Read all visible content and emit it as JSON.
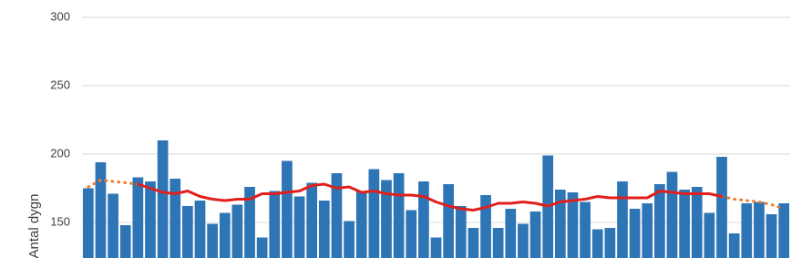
{
  "chart_data": {
    "type": "bar",
    "y_label": "Antal dygn",
    "categories": [
      null,
      null,
      null,
      null,
      null,
      null,
      null,
      null,
      null,
      null,
      null,
      null,
      null,
      null,
      null,
      null,
      null,
      null,
      null,
      null,
      null,
      null,
      null,
      null,
      null,
      null,
      null,
      null,
      null,
      null,
      null,
      null,
      null,
      null,
      null,
      null,
      null,
      null,
      null,
      null,
      null,
      null,
      null,
      null,
      null,
      null,
      null,
      null,
      null,
      null,
      null,
      null,
      null,
      null,
      null,
      null,
      null
    ],
    "values": [
      175,
      194,
      171,
      148,
      183,
      180,
      210,
      182,
      162,
      166,
      149,
      157,
      163,
      176,
      139,
      173,
      195,
      169,
      179,
      166,
      186,
      151,
      173,
      189,
      181,
      186,
      159,
      180,
      139,
      178,
      162,
      146,
      170,
      146,
      160,
      149,
      158,
      199,
      174,
      172,
      165,
      145,
      146,
      180,
      160,
      164,
      178,
      187,
      174,
      176,
      157,
      198,
      142,
      164,
      165,
      156,
      164
    ],
    "color": "#2e75b6",
    "lines": [
      {
        "color": "#ed7d31",
        "dash": true,
        "values": [
          176,
          181,
          180,
          179,
          178,
          null,
          null,
          null,
          null,
          null,
          null,
          null,
          null,
          null,
          null,
          null,
          null,
          null,
          null,
          null,
          null,
          null,
          null,
          null,
          null,
          null,
          null,
          null,
          null,
          null,
          null,
          null,
          null,
          null,
          null,
          null,
          null,
          null,
          null,
          null,
          null,
          null,
          null,
          null,
          null,
          null,
          null,
          null,
          null,
          null,
          null,
          169,
          167,
          166,
          165,
          163,
          160
        ]
      },
      {
        "color": "#e0201c",
        "dash": false,
        "values": [
          null,
          null,
          null,
          null,
          178,
          175,
          172,
          171,
          173,
          169,
          167,
          166,
          167,
          167,
          171,
          171,
          172,
          173,
          177,
          178,
          175,
          176,
          172,
          173,
          171,
          170,
          170,
          169,
          165,
          162,
          160,
          159,
          161,
          164,
          164,
          165,
          164,
          162,
          165,
          166,
          167,
          169,
          168,
          168,
          168,
          168,
          173,
          172,
          171,
          171,
          171,
          169,
          null,
          null,
          null,
          null,
          null
        ]
      }
    ],
    "ylim": [
      124,
      300
    ],
    "yticks": [
      150,
      200,
      250,
      300
    ],
    "grid": true
  }
}
